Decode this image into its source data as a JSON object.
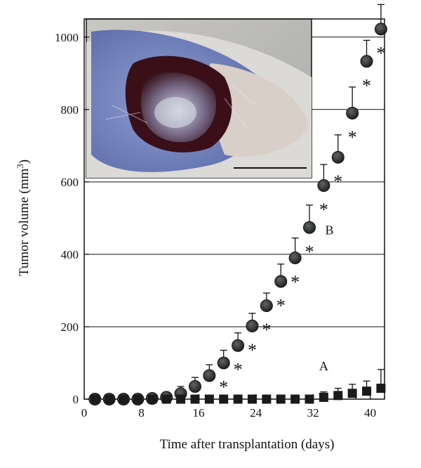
{
  "chart_data": {
    "type": "scatter",
    "xlabel": "Time after transplantation (days)",
    "ylabel": "Tumor volume (mm3)",
    "ylabel_main": "Tumor volume (mm",
    "ylabel_sup": "3",
    "ylabel_close": ")",
    "xlim": [
      0,
      42
    ],
    "ylim": [
      0,
      1050
    ],
    "xticks": [
      0,
      8,
      16,
      24,
      32,
      40
    ],
    "yticks": [
      0,
      200,
      400,
      600,
      800,
      1000
    ],
    "grid": "horizontal",
    "inset": "photograph of tumor with scale bar, top-left",
    "series": [
      {
        "label": "B",
        "marker": "circle",
        "color": "#2b2d2b",
        "x": [
          1.5,
          3.5,
          5.5,
          7.5,
          9.5,
          11.5,
          13.5,
          15.5,
          17.5,
          19.5,
          21.5,
          23.5,
          25.5,
          27.5,
          29.5,
          31.5,
          33.5,
          35.5,
          37.5,
          39.5,
          41.5
        ],
        "y": [
          0,
          0,
          0,
          0,
          2,
          5,
          15,
          35,
          65,
          100,
          148,
          202,
          258,
          325,
          390,
          474,
          590,
          668,
          790,
          933,
          1022
        ],
        "err": [
          0,
          0,
          0,
          0,
          3,
          8,
          20,
          25,
          30,
          35,
          35,
          35,
          35,
          48,
          55,
          62,
          58,
          62,
          72,
          58,
          68
        ],
        "significant_from_index": 9
      },
      {
        "label": "A",
        "marker": "square",
        "color": "#1a1a1a",
        "x": [
          1.5,
          3.5,
          5.5,
          7.5,
          9.5,
          11.5,
          13.5,
          15.5,
          17.5,
          19.5,
          21.5,
          23.5,
          25.5,
          27.5,
          29.5,
          31.5,
          33.5,
          35.5,
          37.5,
          39.5,
          41.5
        ],
        "y": [
          0,
          0,
          0,
          0,
          0,
          0,
          0,
          0,
          0,
          0,
          0,
          0,
          0,
          0,
          0,
          0,
          5,
          10,
          16,
          22,
          30
        ],
        "err": [
          0,
          0,
          0,
          0,
          0,
          0,
          0,
          0,
          0,
          0,
          0,
          0,
          0,
          0,
          0,
          0,
          15,
          20,
          25,
          28,
          52
        ]
      }
    ],
    "annotations": [
      {
        "text": "B",
        "x": 34.3,
        "y": 455
      },
      {
        "text": "A",
        "x": 33.5,
        "y": 80
      }
    ],
    "significance_marker": "*"
  }
}
